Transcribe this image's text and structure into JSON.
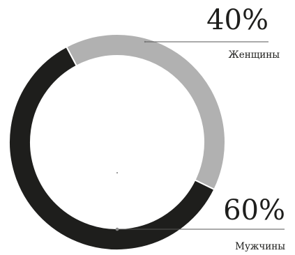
{
  "chart_data": {
    "type": "pie",
    "style": "donut",
    "slices": [
      {
        "label": "Женщины",
        "value": 40,
        "value_label": "40%",
        "color": "#b1b1b1"
      },
      {
        "label": "Мужчины",
        "value": 60,
        "value_label": "60%",
        "color": "#1e1e1c"
      }
    ],
    "start_angle_deg": -28,
    "direction": "clockwise",
    "separator_color": "#ffffff",
    "leader_line_color": "#555555",
    "legend": "none"
  }
}
